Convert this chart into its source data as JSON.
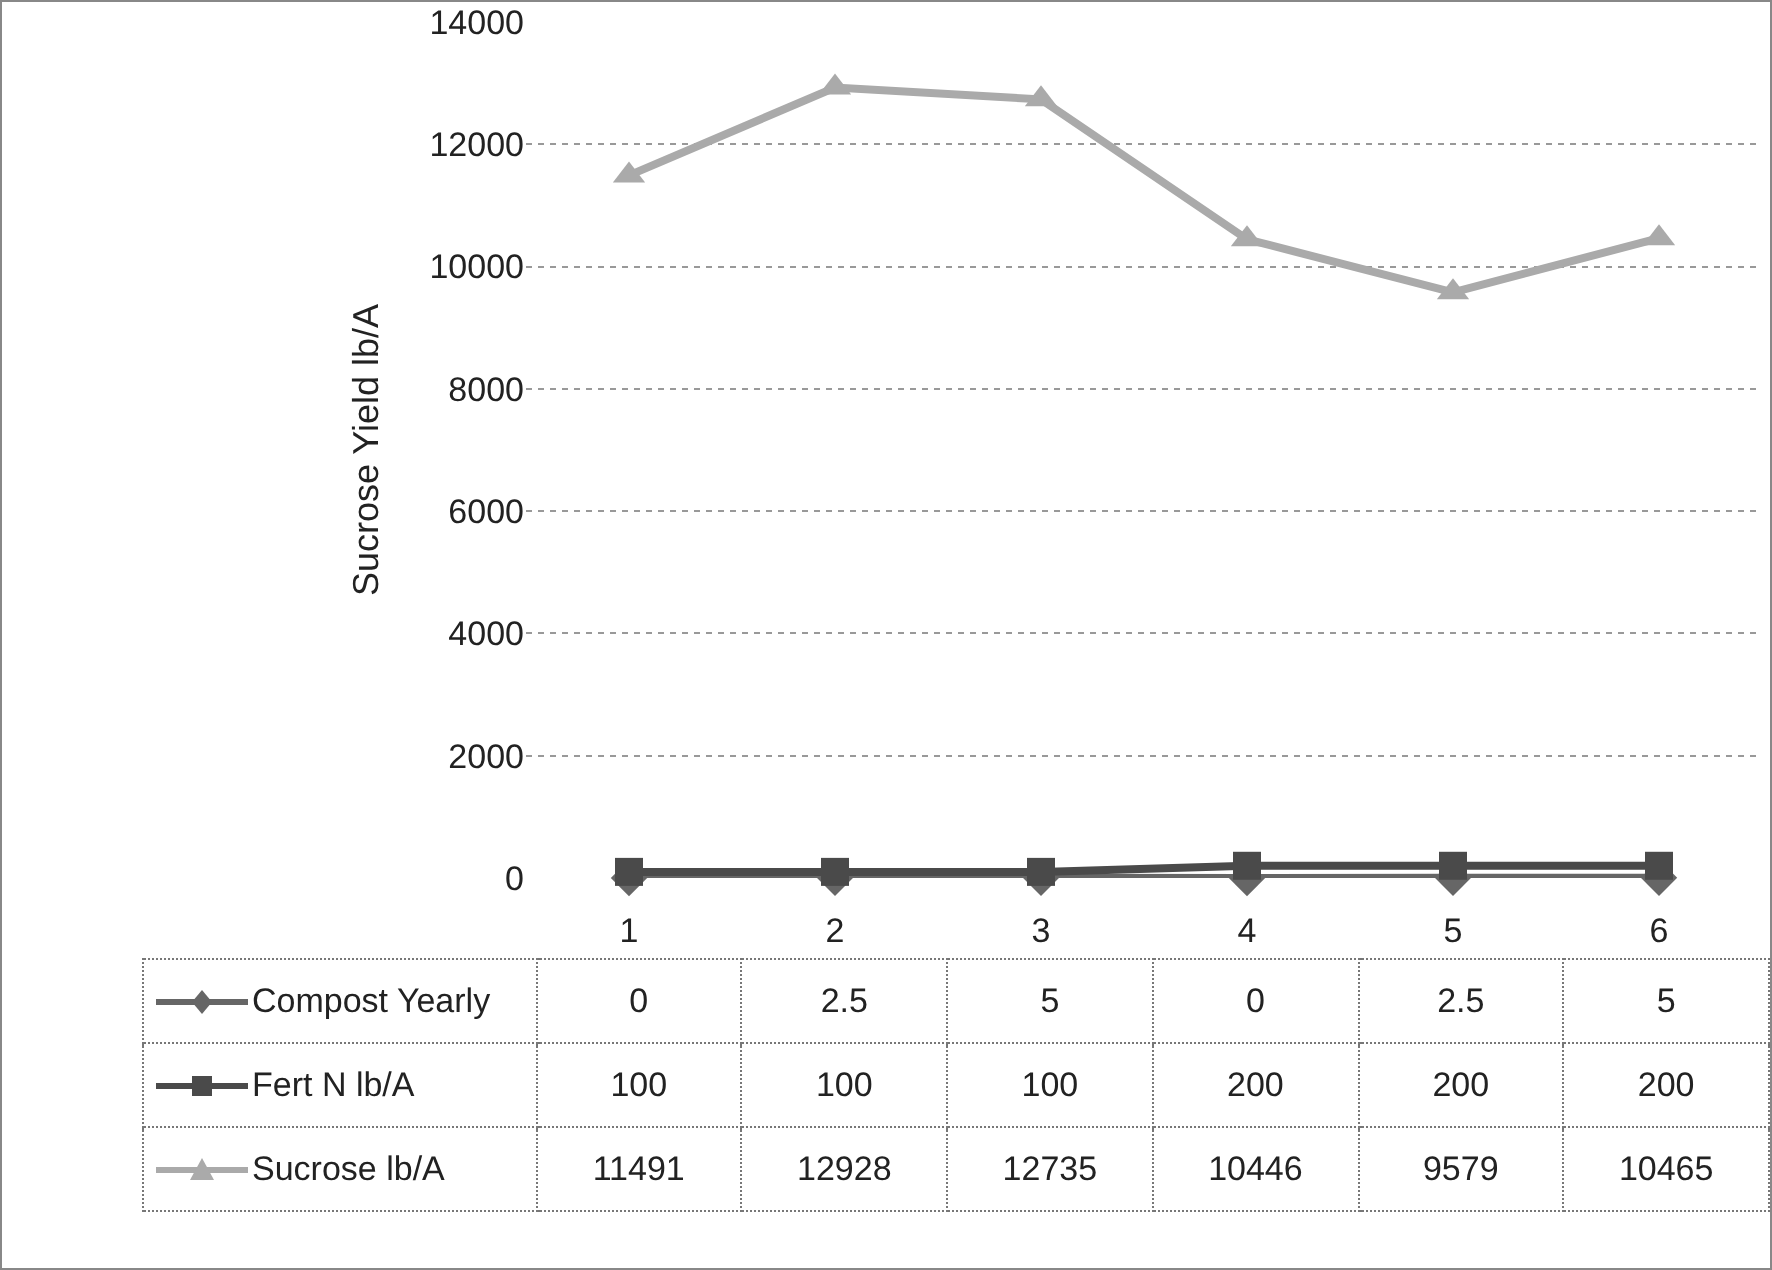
{
  "chart_data": {
    "type": "line",
    "ylabel": "Sucrose Yield lb/A",
    "categories": [
      "1",
      "2",
      "3",
      "4",
      "5",
      "6"
    ],
    "series": [
      {
        "name": "Compost Yearly",
        "color": "#666666",
        "marker": "diamond",
        "values": [
          0,
          2.5,
          5,
          0,
          2.5,
          5
        ]
      },
      {
        "name": "Fert N lb/A",
        "color": "#4a4a4a",
        "marker": "square",
        "values": [
          100,
          100,
          100,
          200,
          200,
          200
        ]
      },
      {
        "name": "Sucrose  lb/A",
        "color": "#aaaaaa",
        "marker": "triangle",
        "values": [
          11491,
          12928,
          12735,
          10446,
          9579,
          10465
        ]
      }
    ],
    "ylim": [
      0,
      14000
    ],
    "yticks": [
      0,
      2000,
      4000,
      6000,
      8000,
      10000,
      12000,
      14000
    ],
    "grid": "y",
    "legend": "bottom",
    "data_labels": true
  }
}
